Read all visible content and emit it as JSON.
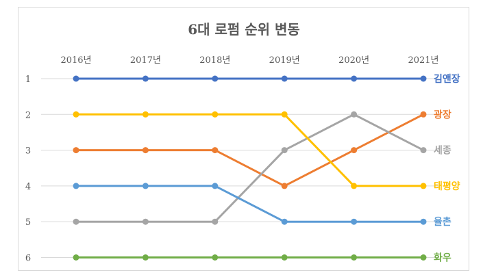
{
  "chart_data": {
    "type": "line",
    "title": "6대 로펌 순위 변동",
    "categories": [
      "2016년",
      "2017년",
      "2018년",
      "2019년",
      "2020년",
      "2021년"
    ],
    "y_ticks": [
      "1",
      "2",
      "3",
      "4",
      "5",
      "6"
    ],
    "ylim": [
      1,
      6
    ],
    "y_inverted": true,
    "grid": true,
    "legend": "none; series labels at right end of lines",
    "series": [
      {
        "name": "김앤장",
        "values": [
          1,
          1,
          1,
          1,
          1,
          1
        ],
        "color": "#4472C4"
      },
      {
        "name": "광장",
        "values": [
          3,
          3,
          3,
          4,
          3,
          2
        ],
        "color": "#ED7D31"
      },
      {
        "name": "세종",
        "values": [
          5,
          5,
          5,
          3,
          2,
          3
        ],
        "color": "#A5A5A5"
      },
      {
        "name": "태평양",
        "values": [
          2,
          2,
          2,
          2,
          4,
          4
        ],
        "color": "#FFC000"
      },
      {
        "name": "율촌",
        "values": [
          4,
          4,
          4,
          5,
          5,
          5
        ],
        "color": "#5B9BD5"
      },
      {
        "name": "화우",
        "values": [
          6,
          6,
          6,
          6,
          6,
          6
        ],
        "color": "#70AD47"
      }
    ]
  }
}
